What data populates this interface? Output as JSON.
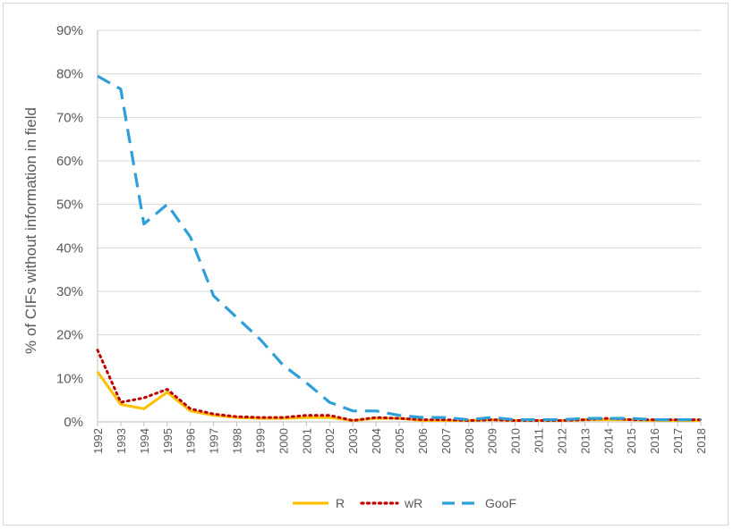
{
  "chart_data": {
    "type": "line",
    "title": "",
    "xlabel": "",
    "ylabel": "% of CIFs without information in field",
    "ylim": [
      0,
      90
    ],
    "y_ticks": [
      "0%",
      "10%",
      "20%",
      "30%",
      "40%",
      "50%",
      "60%",
      "70%",
      "80%",
      "90%"
    ],
    "categories": [
      "1992",
      "1993",
      "1994",
      "1995",
      "1996",
      "1997",
      "1998",
      "1999",
      "2000",
      "2001",
      "2002",
      "2003",
      "2004",
      "2005",
      "2006",
      "2007",
      "2008",
      "2009",
      "2010",
      "2011",
      "2012",
      "2013",
      "2014",
      "2015",
      "2016",
      "2017",
      "2018"
    ],
    "grid": true,
    "legend_position": "bottom",
    "series": [
      {
        "name": "R",
        "color": "#ffc000",
        "style": "solid",
        "values": [
          11.5,
          4.0,
          3.0,
          6.8,
          2.5,
          1.5,
          1.0,
          0.8,
          0.8,
          1.0,
          1.0,
          0.3,
          0.8,
          0.8,
          0.3,
          0.3,
          0.3,
          0.5,
          0.3,
          0.3,
          0.3,
          0.5,
          0.5,
          0.5,
          0.3,
          0.3,
          0.3
        ]
      },
      {
        "name": "wR",
        "color": "#c00000",
        "style": "dotted",
        "values": [
          16.5,
          4.5,
          5.5,
          7.5,
          3.0,
          1.8,
          1.2,
          1.0,
          1.0,
          1.5,
          1.5,
          0.3,
          1.0,
          0.8,
          0.5,
          0.5,
          0.3,
          0.5,
          0.3,
          0.3,
          0.3,
          0.5,
          0.8,
          0.5,
          0.5,
          0.5,
          0.5
        ]
      },
      {
        "name": "GooF",
        "color": "#2e9fd8",
        "style": "dashed",
        "values": [
          79.5,
          76.5,
          45.5,
          50.0,
          42.5,
          29.0,
          24.0,
          19.0,
          13.0,
          9.0,
          4.5,
          2.5,
          2.5,
          1.5,
          1.0,
          1.0,
          0.5,
          1.0,
          0.5,
          0.5,
          0.5,
          0.8,
          0.8,
          0.8,
          0.5,
          0.5,
          0.5
        ]
      }
    ]
  }
}
